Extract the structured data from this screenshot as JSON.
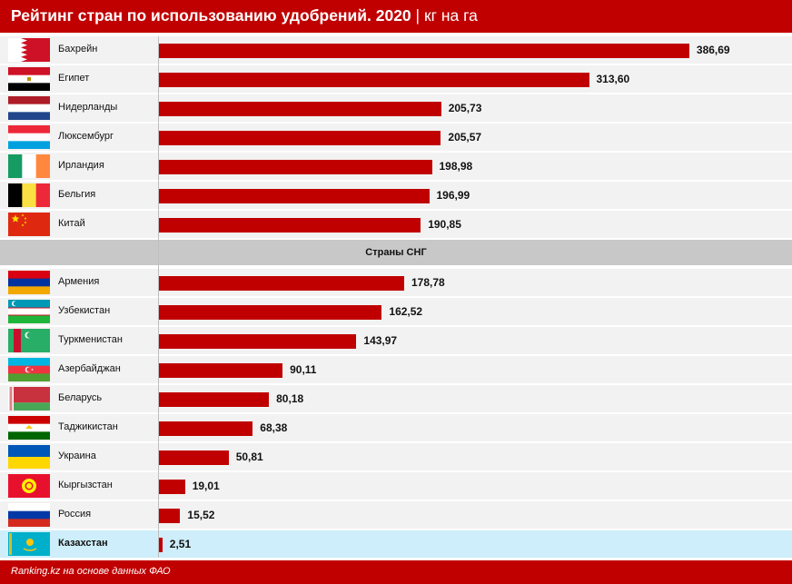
{
  "header": {
    "title": "Рейтинг стран по использованию удобрений. 2020",
    "unit": "| кг на га"
  },
  "footer": {
    "source": "Ranking.kz на основе данных ФАО"
  },
  "colors": {
    "bar": "#c00000",
    "header": "#c00000",
    "row": "#f2f2f2",
    "highlight": "#cdeefa",
    "group": "#c8c8c8"
  },
  "chart_data": {
    "type": "bar",
    "orientation": "horizontal",
    "xlim": [
      0,
      400
    ],
    "groups": [
      {
        "label": "",
        "items": [
          {
            "country": "Бахрейн",
            "value": 386.69,
            "value_label": "386,69",
            "flag": "flag-bahrain"
          },
          {
            "country": "Египет",
            "value": 313.6,
            "value_label": "313,60",
            "flag": "flag-egypt"
          },
          {
            "country": "Нидерланды",
            "value": 205.73,
            "value_label": "205,73",
            "flag": "flag-netherlands"
          },
          {
            "country": "Люксембург",
            "value": 205.57,
            "value_label": "205,57",
            "flag": "flag-luxembourg"
          },
          {
            "country": "Ирландия",
            "value": 198.98,
            "value_label": "198,98",
            "flag": "flag-ireland"
          },
          {
            "country": "Бельгия",
            "value": 196.99,
            "value_label": "196,99",
            "flag": "flag-belgium"
          },
          {
            "country": "Китай",
            "value": 190.85,
            "value_label": "190,85",
            "flag": "flag-china"
          }
        ]
      },
      {
        "label": "Страны СНГ",
        "items": [
          {
            "country": "Армения",
            "value": 178.78,
            "value_label": "178,78",
            "flag": "flag-armenia"
          },
          {
            "country": "Узбекистан",
            "value": 162.52,
            "value_label": "162,52",
            "flag": "flag-uzbekistan"
          },
          {
            "country": "Туркменистан",
            "value": 143.97,
            "value_label": "143,97",
            "flag": "flag-turkmenistan"
          },
          {
            "country": "Азербайджан",
            "value": 90.11,
            "value_label": "90,11",
            "flag": "flag-azerbaijan"
          },
          {
            "country": "Беларусь",
            "value": 80.18,
            "value_label": "80,18",
            "flag": "flag-belarus"
          },
          {
            "country": "Таджикистан",
            "value": 68.38,
            "value_label": "68,38",
            "flag": "flag-tajikistan"
          },
          {
            "country": "Украина",
            "value": 50.81,
            "value_label": "50,81",
            "flag": "flag-ukraine"
          },
          {
            "country": "Кыргызстан",
            "value": 19.01,
            "value_label": "19,01",
            "flag": "flag-kyrgyzstan"
          },
          {
            "country": "Россия",
            "value": 15.52,
            "value_label": "15,52",
            "flag": "flag-russia"
          },
          {
            "country": "Казахстан",
            "value": 2.51,
            "value_label": "2,51",
            "flag": "flag-kazakhstan",
            "highlight": true
          }
        ]
      }
    ]
  }
}
